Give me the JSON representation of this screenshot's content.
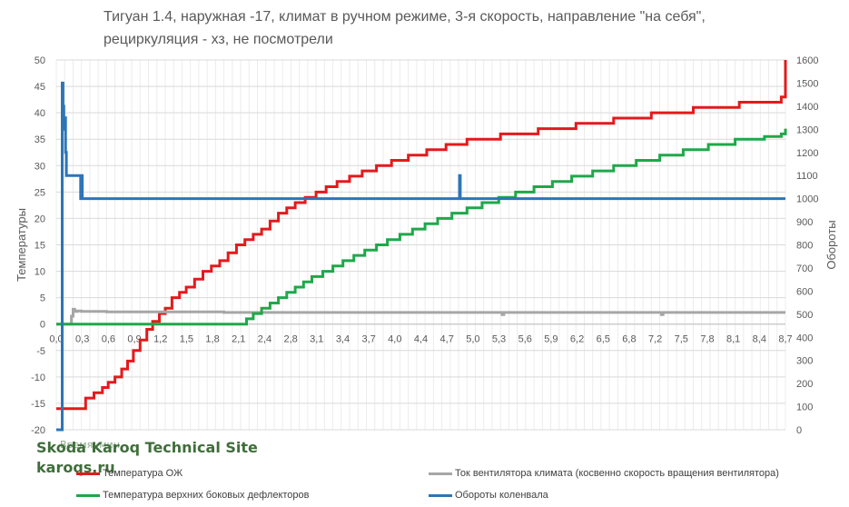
{
  "chart_data": {
    "type": "line",
    "title_lines": [
      "Тигуан 1.4, наружная -17, климат  в ручном режиме, 3-я скорость, направление \"на себя\",",
      "рециркуляция - хз, не посмотрели"
    ],
    "ylabel_left": "Температуры",
    "ylabel_right": "Обороты",
    "ylim_left": [
      -20,
      50
    ],
    "ylim_right": [
      0,
      1600
    ],
    "xlim": [
      0,
      8.7
    ],
    "x_ticks": [
      "0,0",
      "0,3",
      "0,6",
      "0,9",
      "1,2",
      "1,5",
      "1,8",
      "2,1",
      "2,4",
      "2,8",
      "3,1",
      "3,4",
      "3,7",
      "4,0",
      "4,4",
      "4,7",
      "5,0",
      "5,3",
      "5,6",
      "5,9",
      "6,2",
      "6,5",
      "6,8",
      "7,2",
      "7,5",
      "7,8",
      "8,1",
      "8,4",
      "8,7"
    ],
    "y_ticks_left": [
      50,
      45,
      40,
      35,
      30,
      25,
      20,
      15,
      10,
      5,
      0,
      -5,
      -10,
      -15,
      -20
    ],
    "y_ticks_right": [
      1600,
      1500,
      1400,
      1300,
      1200,
      1100,
      1000,
      900,
      800,
      700,
      600,
      500,
      400,
      300,
      200,
      100,
      0
    ],
    "grid": true,
    "legend_position": "bottom",
    "series": [
      {
        "name": "Температура ОЖ",
        "color": "#e31a1c",
        "axis": "left",
        "x": [
          0.0,
          0.35,
          0.45,
          0.55,
          0.62,
          0.7,
          0.78,
          0.85,
          0.92,
          1.0,
          1.08,
          1.15,
          1.23,
          1.3,
          1.38,
          1.47,
          1.55,
          1.65,
          1.75,
          1.85,
          1.95,
          2.05,
          2.15,
          2.25,
          2.35,
          2.45,
          2.55,
          2.65,
          2.75,
          2.85,
          2.97,
          3.1,
          3.22,
          3.35,
          3.5,
          3.65,
          3.82,
          4.0,
          4.2,
          4.42,
          4.65,
          4.9,
          5.3,
          5.75,
          6.2,
          6.65,
          7.1,
          7.6,
          8.15,
          8.65,
          8.7
        ],
        "y": [
          -16,
          -14,
          -13,
          -12,
          -11,
          -10,
          -8.5,
          -7,
          -5,
          -3,
          -1,
          0.5,
          2,
          3,
          5,
          6,
          7,
          8.5,
          10,
          11,
          12,
          13.5,
          15,
          16,
          17,
          18,
          19.5,
          21,
          22,
          23,
          24,
          25,
          26,
          27,
          28,
          29,
          30,
          31,
          32,
          33,
          34,
          35,
          36,
          37,
          38,
          39,
          40,
          41,
          42,
          43,
          50
        ]
      },
      {
        "name": "Ток вентилятора климата (косвенно скорость вращения вентилятора)",
        "color": "#a6a6a6",
        "axis": "left",
        "x": [
          0.0,
          0.12,
          0.18,
          0.2,
          0.22,
          0.25,
          0.3,
          0.4,
          0.6,
          1.0,
          1.5,
          2.0,
          3.0,
          4.0,
          5.0,
          5.3,
          5.32,
          5.34,
          6.0,
          7.0,
          7.2,
          7.22,
          7.24,
          8.0,
          8.7
        ],
        "y": [
          0,
          0,
          1.5,
          2.8,
          2.4,
          2.5,
          2.4,
          2.4,
          2.3,
          2.3,
          2.3,
          2.2,
          2.2,
          2.2,
          2.2,
          2.2,
          1.8,
          2.2,
          2.2,
          2.2,
          2.2,
          1.8,
          2.2,
          2.2,
          2.2
        ]
      },
      {
        "name": "Температура верхних боковых дефлекторов",
        "color": "#1ea84a",
        "axis": "left",
        "x": [
          0.0,
          2.27,
          2.35,
          2.45,
          2.55,
          2.65,
          2.75,
          2.85,
          2.95,
          3.05,
          3.18,
          3.3,
          3.42,
          3.55,
          3.68,
          3.82,
          3.95,
          4.1,
          4.25,
          4.4,
          4.55,
          4.72,
          4.9,
          5.08,
          5.28,
          5.48,
          5.7,
          5.92,
          6.15,
          6.4,
          6.65,
          6.92,
          7.2,
          7.48,
          7.78,
          8.1,
          8.45,
          8.65,
          8.7
        ],
        "y": [
          0,
          1,
          2,
          3,
          4,
          5,
          6,
          7,
          8,
          9,
          10,
          11,
          12,
          13,
          14,
          15,
          16,
          17,
          18,
          19,
          20,
          21,
          22,
          23,
          24,
          25,
          26,
          27,
          28,
          29,
          30,
          31,
          32,
          33,
          34,
          35,
          35.5,
          36,
          37
        ]
      },
      {
        "name": "Обороты коленвала",
        "color": "#2e75b6",
        "axis": "right",
        "x": [
          0.0,
          0.06,
          0.07,
          0.08,
          0.09,
          0.1,
          0.11,
          0.12,
          0.14,
          0.16,
          0.28,
          0.29,
          0.3,
          0.31,
          1.0,
          2.0,
          3.0,
          4.0,
          4.8,
          4.81,
          4.82,
          4.83,
          5.0,
          6.0,
          7.0,
          8.0,
          8.7
        ],
        "y": [
          0,
          0,
          1500,
          1400,
          1300,
          1350,
          1200,
          1100,
          1100,
          1100,
          1100,
          1000,
          1100,
          1000,
          1000,
          1000,
          1000,
          1000,
          1000,
          1100,
          1000,
          1000,
          1000,
          1000,
          1000,
          1000,
          1000
        ]
      }
    ]
  },
  "watermark": {
    "overlay_text": "Время, мин",
    "line1": "Skoda Karoq Technical Site",
    "line2": "karoqs.ru"
  },
  "legend": [
    {
      "label": "Температура ОЖ",
      "color": "#e31a1c"
    },
    {
      "label": "Ток вентилятора климата (косвенно скорость вращения вентилятора)",
      "color": "#a6a6a6"
    },
    {
      "label": "Температура верхних боковых дефлекторов",
      "color": "#1ea84a"
    },
    {
      "label": "Обороты коленвала",
      "color": "#2e75b6"
    }
  ]
}
